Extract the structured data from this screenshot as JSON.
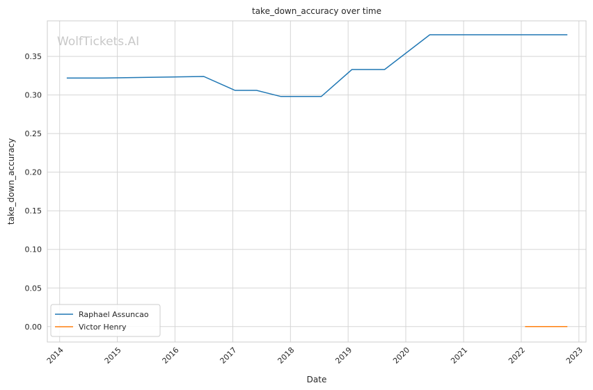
{
  "chart_data": {
    "type": "line",
    "title": "take_down_accuracy over time",
    "xlabel": "Date",
    "ylabel": "take_down_accuracy",
    "watermark": "WolfTickets.AI",
    "xlim": [
      "2013-10-15",
      "2023-02-15"
    ],
    "ylim": [
      -0.02,
      0.396
    ],
    "x_ticks": [
      "2014",
      "2015",
      "2016",
      "2017",
      "2018",
      "2019",
      "2020",
      "2021",
      "2022",
      "2023"
    ],
    "y_ticks": [
      "0.00",
      "0.05",
      "0.10",
      "0.15",
      "0.20",
      "0.25",
      "0.30",
      "0.35"
    ],
    "grid": true,
    "legend_position": "lower-left",
    "series": [
      {
        "name": "Raphael Assuncao",
        "color": "#1f77b4",
        "points": [
          {
            "x": "2014-02-15",
            "y": 0.322
          },
          {
            "x": "2014-10-01",
            "y": 0.322
          },
          {
            "x": "2016-07-01",
            "y": 0.324
          },
          {
            "x": "2017-01-15",
            "y": 0.306
          },
          {
            "x": "2017-06-01",
            "y": 0.306
          },
          {
            "x": "2017-11-01",
            "y": 0.298
          },
          {
            "x": "2018-07-15",
            "y": 0.298
          },
          {
            "x": "2019-01-25",
            "y": 0.333
          },
          {
            "x": "2019-08-20",
            "y": 0.333
          },
          {
            "x": "2020-06-01",
            "y": 0.378
          },
          {
            "x": "2022-10-20",
            "y": 0.378
          }
        ]
      },
      {
        "name": "Victor Henry",
        "color": "#ff7f0e",
        "points": [
          {
            "x": "2022-01-25",
            "y": 0.0
          },
          {
            "x": "2022-10-20",
            "y": 0.0
          }
        ]
      }
    ]
  }
}
